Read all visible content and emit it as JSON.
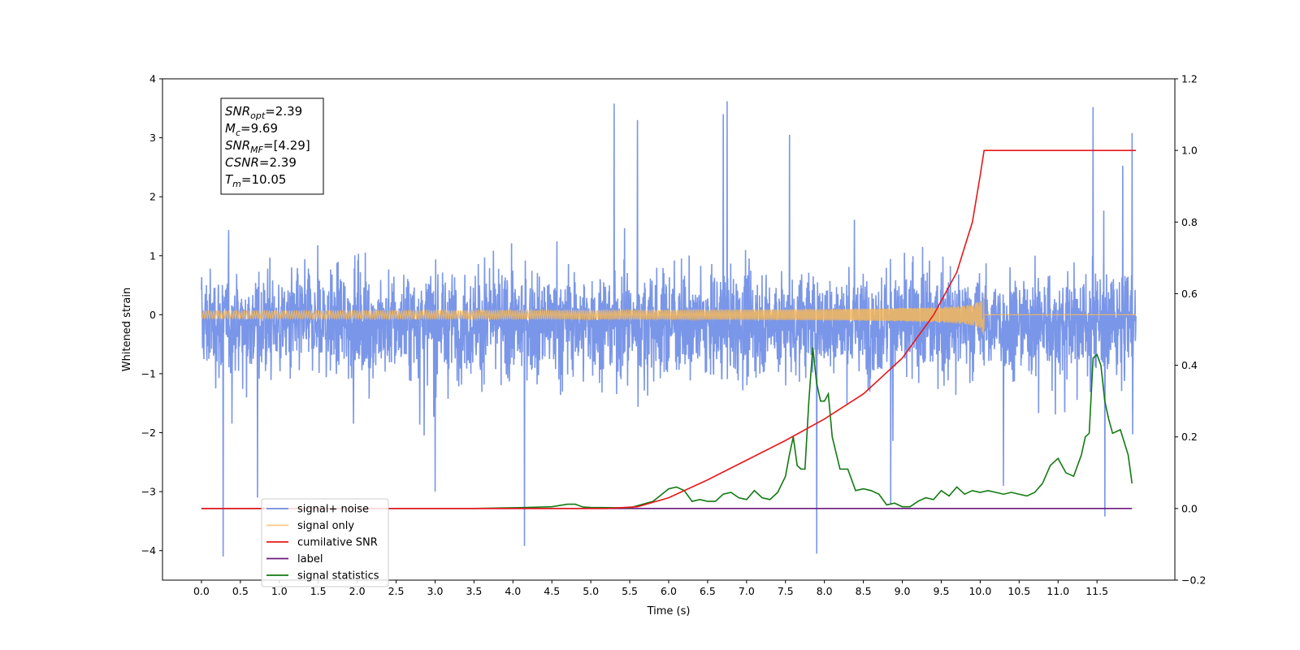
{
  "chart_data": {
    "type": "line",
    "title": "",
    "xlabel": "Time (s)",
    "ylabel": "Whitened strain",
    "y2label": "",
    "xlim": [
      -0.5,
      12.5
    ],
    "ylim": [
      -4.5,
      4.0
    ],
    "y2lim": [
      -0.2,
      1.2
    ],
    "x_ticks": [
      "0.0",
      "0.5",
      "1.0",
      "1.5",
      "2.0",
      "2.5",
      "3.0",
      "3.5",
      "4.0",
      "4.5",
      "5.0",
      "5.5",
      "6.0",
      "6.5",
      "7.0",
      "7.5",
      "8.0",
      "8.5",
      "9.0",
      "9.5",
      "10.0",
      "10.5",
      "11.0",
      "11.5"
    ],
    "y_ticks": [
      "4",
      "3",
      "2",
      "1",
      "0",
      "−1",
      "−2",
      "−3",
      "−4"
    ],
    "y2_ticks": [
      "1.2",
      "1.0",
      "0.8",
      "0.6",
      "0.4",
      "0.2",
      "0.0",
      "−0.2"
    ],
    "grid": false,
    "legend_position": "lower-left",
    "annotation": {
      "lines": [
        {
          "base": "SNR",
          "sub": "opt",
          "rest": "=2.39"
        },
        {
          "base": "M",
          "sub": "c",
          "rest": "=9.69"
        },
        {
          "base": "SNR",
          "sub": "MF",
          "rest": "=[4.29]"
        },
        {
          "base": "CSNR",
          "sub": "",
          "rest": "=2.39"
        },
        {
          "base": "T",
          "sub": "m",
          "rest": "=10.05"
        }
      ]
    },
    "series": [
      {
        "name": "signal+ noise",
        "color": "#6f8de6",
        "axis": "left",
        "style": "dense-noise",
        "x_range": [
          0.0,
          12.0
        ],
        "typical_band": [
          -1.7,
          1.4
        ],
        "spikes": [
          {
            "x": 0.28,
            "y": -4.1
          },
          {
            "x": 4.15,
            "y": -3.92
          },
          {
            "x": 7.9,
            "y": -4.05
          },
          {
            "x": 11.6,
            "y": -3.42
          },
          {
            "x": 5.3,
            "y": 3.58
          },
          {
            "x": 6.75,
            "y": 3.62
          },
          {
            "x": 11.45,
            "y": 3.52
          },
          {
            "x": 6.7,
            "y": 3.4
          },
          {
            "x": 11.95,
            "y": 3.08
          },
          {
            "x": 5.6,
            "y": 3.3
          },
          {
            "x": 3.0,
            "y": -3.0
          },
          {
            "x": 8.85,
            "y": -3.2
          },
          {
            "x": 0.72,
            "y": -3.1
          },
          {
            "x": 7.55,
            "y": 3.05
          },
          {
            "x": 10.3,
            "y": -2.9
          }
        ]
      },
      {
        "name": "signal only",
        "color": "#f5b75a",
        "axis": "left",
        "style": "chirp",
        "x_range": [
          0.0,
          12.0
        ],
        "merger_time": 10.05,
        "peak_amplitude": 0.38
      },
      {
        "name": "cumilative SNR",
        "color": "#e8171b",
        "axis": "right",
        "x": [
          0.0,
          5.2,
          5.6,
          6.0,
          6.5,
          7.0,
          7.5,
          8.0,
          8.5,
          9.0,
          9.4,
          9.7,
          9.9,
          10.0,
          10.05,
          12.0
        ],
        "y": [
          0.0,
          0.0,
          0.005,
          0.03,
          0.08,
          0.135,
          0.19,
          0.25,
          0.32,
          0.42,
          0.54,
          0.66,
          0.8,
          0.93,
          1.0,
          1.0
        ]
      },
      {
        "name": "label",
        "color": "#6c1a7d",
        "axis": "right",
        "x": [
          0.0,
          11.95
        ],
        "y": [
          0.0,
          0.0
        ]
      },
      {
        "name": "signal statistics",
        "color": "#127a12",
        "axis": "right",
        "x": [
          0.0,
          3.5,
          4.0,
          4.5,
          4.7,
          4.8,
          4.9,
          5.0,
          5.5,
          5.8,
          6.0,
          6.1,
          6.2,
          6.3,
          6.4,
          6.5,
          6.6,
          6.7,
          6.8,
          6.9,
          7.0,
          7.1,
          7.2,
          7.3,
          7.4,
          7.5,
          7.55,
          7.6,
          7.65,
          7.7,
          7.75,
          7.8,
          7.85,
          7.9,
          7.95,
          8.0,
          8.05,
          8.1,
          8.2,
          8.3,
          8.4,
          8.5,
          8.6,
          8.7,
          8.8,
          8.9,
          9.0,
          9.1,
          9.2,
          9.3,
          9.4,
          9.5,
          9.6,
          9.7,
          9.8,
          9.9,
          10.0,
          10.1,
          10.2,
          10.3,
          10.4,
          10.5,
          10.6,
          10.7,
          10.8,
          10.9,
          11.0,
          11.1,
          11.2,
          11.3,
          11.35,
          11.4,
          11.45,
          11.5,
          11.55,
          11.6,
          11.65,
          11.7,
          11.8,
          11.9,
          11.95
        ],
        "y": [
          0.0,
          0.0,
          0.002,
          0.005,
          0.012,
          0.012,
          0.004,
          0.003,
          0.002,
          0.02,
          0.055,
          0.06,
          0.05,
          0.02,
          0.025,
          0.02,
          0.02,
          0.04,
          0.045,
          0.03,
          0.025,
          0.05,
          0.03,
          0.025,
          0.045,
          0.09,
          0.15,
          0.2,
          0.12,
          0.11,
          0.11,
          0.3,
          0.45,
          0.35,
          0.3,
          0.3,
          0.32,
          0.2,
          0.11,
          0.11,
          0.05,
          0.055,
          0.05,
          0.04,
          0.01,
          0.015,
          0.005,
          0.005,
          0.02,
          0.03,
          0.025,
          0.05,
          0.035,
          0.06,
          0.04,
          0.05,
          0.045,
          0.05,
          0.045,
          0.04,
          0.045,
          0.04,
          0.035,
          0.045,
          0.07,
          0.12,
          0.14,
          0.1,
          0.09,
          0.15,
          0.2,
          0.21,
          0.42,
          0.43,
          0.4,
          0.3,
          0.25,
          0.21,
          0.22,
          0.15,
          0.07
        ]
      }
    ]
  }
}
